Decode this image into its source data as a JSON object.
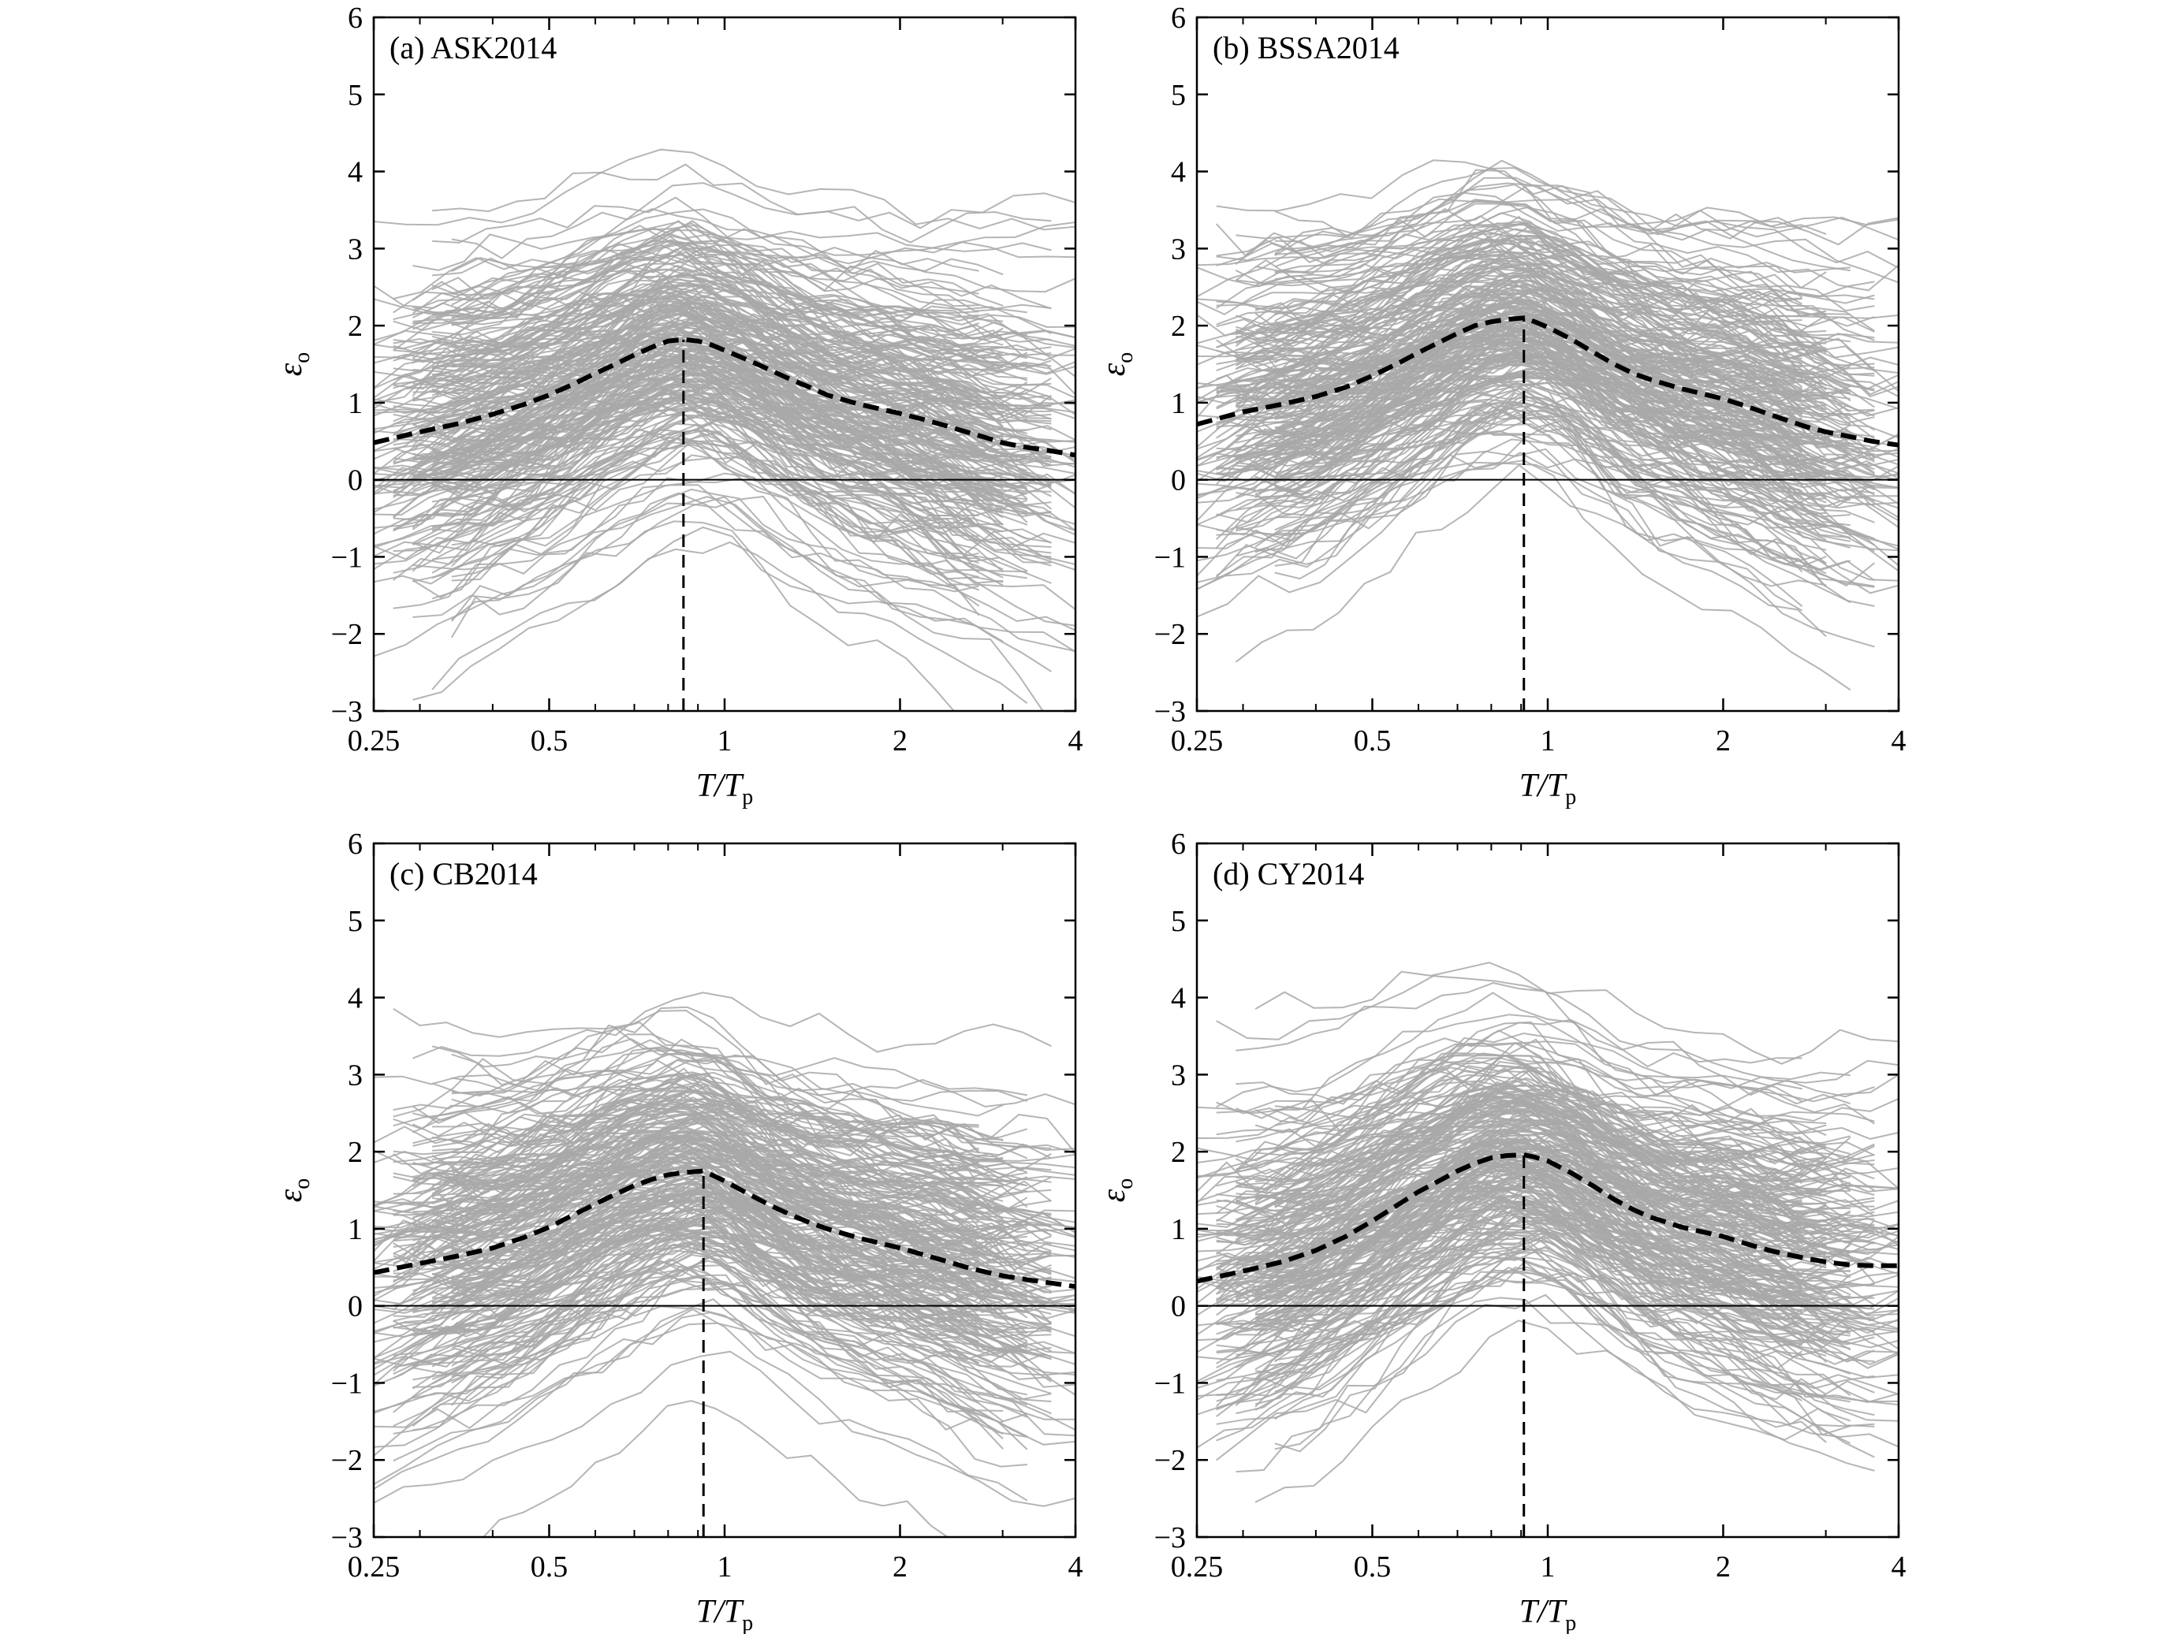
{
  "chart_data": [
    {
      "type": "line",
      "title": "(a) ASK2014",
      "xlabel": "T/T_p",
      "ylabel": "ε_o",
      "xscale": "log",
      "xlim": [
        0.25,
        4
      ],
      "ylim": [
        -3,
        6
      ],
      "xticks": [
        "0.25",
        "0.5",
        "1",
        "2",
        "4"
      ],
      "yticks": [
        "−3",
        "−2",
        "−1",
        "0",
        "1",
        "2",
        "3",
        "4",
        "5",
        "6"
      ],
      "reference_line_y": 0,
      "peak_marker_x": 0.85,
      "individual_records_color": "#a8a8a8",
      "mean_curve": {
        "style": "dashed",
        "x": [
          0.25,
          0.3,
          0.35,
          0.4,
          0.45,
          0.5,
          0.55,
          0.6,
          0.65,
          0.7,
          0.75,
          0.8,
          0.85,
          0.9,
          0.95,
          1.0,
          1.1,
          1.2,
          1.3,
          1.4,
          1.5,
          1.7,
          2.0,
          2.2,
          2.4,
          2.6,
          2.8,
          3.0,
          3.3,
          3.6,
          4.0
        ],
        "y": [
          0.48,
          0.62,
          0.73,
          0.85,
          0.97,
          1.1,
          1.24,
          1.38,
          1.5,
          1.62,
          1.72,
          1.8,
          1.82,
          1.8,
          1.75,
          1.68,
          1.55,
          1.42,
          1.3,
          1.2,
          1.1,
          0.98,
          0.86,
          0.78,
          0.7,
          0.62,
          0.55,
          0.48,
          0.42,
          0.38,
          0.32
        ]
      }
    },
    {
      "type": "line",
      "title": "(b) BSSA2014",
      "xlabel": "T/T_p",
      "ylabel": "ε_o",
      "xscale": "log",
      "xlim": [
        0.25,
        4
      ],
      "ylim": [
        -3,
        6
      ],
      "xticks": [
        "0.25",
        "0.5",
        "1",
        "2",
        "4"
      ],
      "yticks": [
        "−3",
        "−2",
        "−1",
        "0",
        "1",
        "2",
        "3",
        "4",
        "5",
        "6"
      ],
      "reference_line_y": 0,
      "peak_marker_x": 0.91,
      "individual_records_color": "#a8a8a8",
      "mean_curve": {
        "style": "dashed",
        "x": [
          0.25,
          0.3,
          0.35,
          0.4,
          0.45,
          0.5,
          0.55,
          0.6,
          0.65,
          0.7,
          0.75,
          0.8,
          0.85,
          0.91,
          0.95,
          1.0,
          1.1,
          1.2,
          1.3,
          1.4,
          1.5,
          1.7,
          2.0,
          2.2,
          2.4,
          2.6,
          2.8,
          3.0,
          3.3,
          3.6,
          4.0
        ],
        "y": [
          0.72,
          0.88,
          0.98,
          1.08,
          1.2,
          1.35,
          1.5,
          1.65,
          1.78,
          1.9,
          2.0,
          2.05,
          2.08,
          2.1,
          2.05,
          1.98,
          1.82,
          1.65,
          1.5,
          1.38,
          1.3,
          1.18,
          1.05,
          0.95,
          0.85,
          0.76,
          0.68,
          0.62,
          0.56,
          0.5,
          0.45
        ]
      }
    },
    {
      "type": "line",
      "title": "(c) CB2014",
      "xlabel": "T/T_p",
      "ylabel": "ε_o",
      "xscale": "log",
      "xlim": [
        0.25,
        4
      ],
      "ylim": [
        -3,
        6
      ],
      "xticks": [
        "0.25",
        "0.5",
        "1",
        "2",
        "4"
      ],
      "yticks": [
        "−3",
        "−2",
        "−1",
        "0",
        "1",
        "2",
        "3",
        "4",
        "5",
        "6"
      ],
      "reference_line_y": 0,
      "peak_marker_x": 0.92,
      "individual_records_color": "#a8a8a8",
      "mean_curve": {
        "style": "dashed",
        "x": [
          0.25,
          0.3,
          0.35,
          0.4,
          0.45,
          0.5,
          0.55,
          0.6,
          0.65,
          0.7,
          0.75,
          0.8,
          0.85,
          0.92,
          1.0,
          1.1,
          1.2,
          1.3,
          1.4,
          1.5,
          1.7,
          2.0,
          2.2,
          2.4,
          2.6,
          2.8,
          3.0,
          3.3,
          3.6,
          4.0
        ],
        "y": [
          0.43,
          0.55,
          0.65,
          0.75,
          0.88,
          1.02,
          1.18,
          1.32,
          1.45,
          1.56,
          1.64,
          1.7,
          1.73,
          1.75,
          1.62,
          1.45,
          1.3,
          1.18,
          1.08,
          1.0,
          0.88,
          0.75,
          0.66,
          0.58,
          0.5,
          0.44,
          0.39,
          0.34,
          0.3,
          0.25
        ]
      }
    },
    {
      "type": "line",
      "title": "(d) CY2014",
      "xlabel": "T/T_p",
      "ylabel": "ε_o",
      "xscale": "log",
      "xlim": [
        0.25,
        4
      ],
      "ylim": [
        -3,
        6
      ],
      "xticks": [
        "0.25",
        "0.5",
        "1",
        "2",
        "4"
      ],
      "yticks": [
        "−3",
        "−2",
        "−1",
        "0",
        "1",
        "2",
        "3",
        "4",
        "5",
        "6"
      ],
      "reference_line_y": 0,
      "peak_marker_x": 0.91,
      "individual_records_color": "#a8a8a8",
      "mean_curve": {
        "style": "dashed",
        "x": [
          0.25,
          0.3,
          0.35,
          0.4,
          0.45,
          0.5,
          0.55,
          0.6,
          0.65,
          0.7,
          0.75,
          0.8,
          0.85,
          0.91,
          0.95,
          1.0,
          1.1,
          1.2,
          1.3,
          1.4,
          1.5,
          1.7,
          2.0,
          2.2,
          2.4,
          2.6,
          2.8,
          3.0,
          3.3,
          3.6,
          4.0
        ],
        "y": [
          0.32,
          0.45,
          0.57,
          0.72,
          0.9,
          1.1,
          1.3,
          1.48,
          1.62,
          1.75,
          1.85,
          1.92,
          1.95,
          1.96,
          1.93,
          1.88,
          1.72,
          1.55,
          1.38,
          1.25,
          1.15,
          1.02,
          0.9,
          0.8,
          0.72,
          0.66,
          0.61,
          0.57,
          0.53,
          0.52,
          0.52
        ]
      }
    }
  ]
}
